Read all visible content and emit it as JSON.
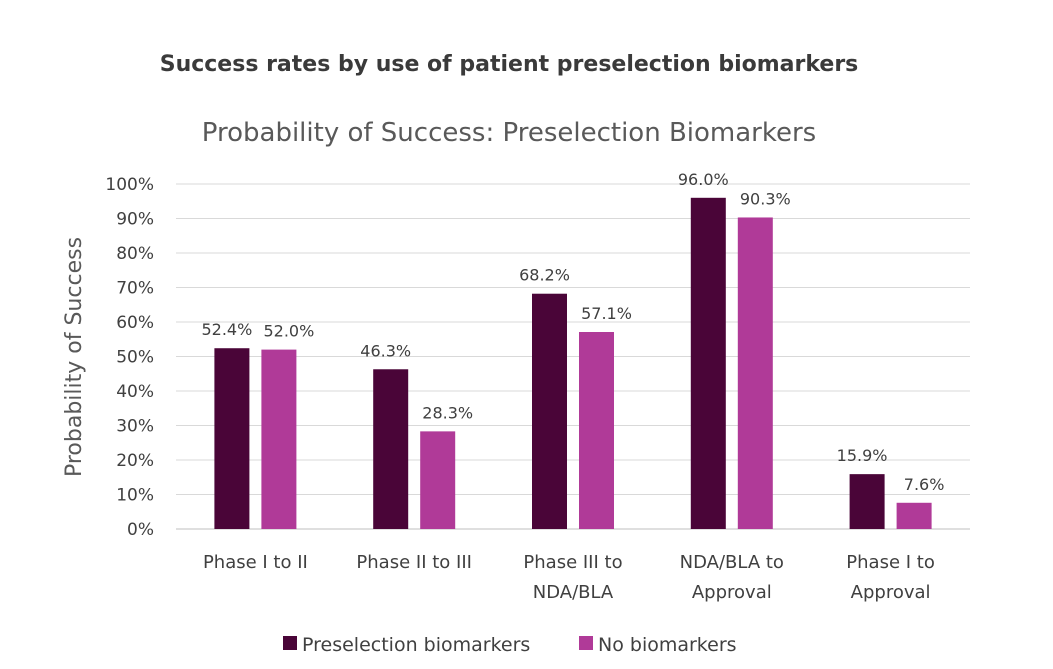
{
  "header": {
    "title": "Success rates by use of patient preselection biomarkers"
  },
  "chart_data": {
    "type": "bar",
    "title": "Probability of Success: Preselection Biomarkers",
    "xlabel": "",
    "ylabel": "Probability of Success",
    "ylim": [
      0,
      100
    ],
    "yticks": [
      0,
      10,
      20,
      30,
      40,
      50,
      60,
      70,
      80,
      90,
      100
    ],
    "ytick_labels": [
      "0%",
      "10%",
      "20%",
      "30%",
      "40%",
      "50%",
      "60%",
      "70%",
      "80%",
      "90%",
      "100%"
    ],
    "grid": true,
    "legend_position": "bottom",
    "categories": [
      [
        "Phase I to II"
      ],
      [
        "Phase II to III"
      ],
      [
        "Phase III to",
        "NDA/BLA"
      ],
      [
        "NDA/BLA to",
        "Approval"
      ],
      [
        "Phase I to",
        "Approval"
      ]
    ],
    "series": [
      {
        "name": "Preselection biomarkers",
        "color": "#4a0538",
        "values": [
          52.4,
          46.3,
          68.2,
          96.0,
          15.9
        ],
        "labels": [
          "52.4%",
          "46.3%",
          "68.2%",
          "96.0%",
          "15.9%"
        ]
      },
      {
        "name": "No biomarkers",
        "color": "#b03a98",
        "values": [
          52.0,
          28.3,
          57.1,
          90.3,
          7.6
        ],
        "labels": [
          "52.0%",
          "28.3%",
          "57.1%",
          "90.3%",
          "7.6%"
        ]
      }
    ]
  }
}
